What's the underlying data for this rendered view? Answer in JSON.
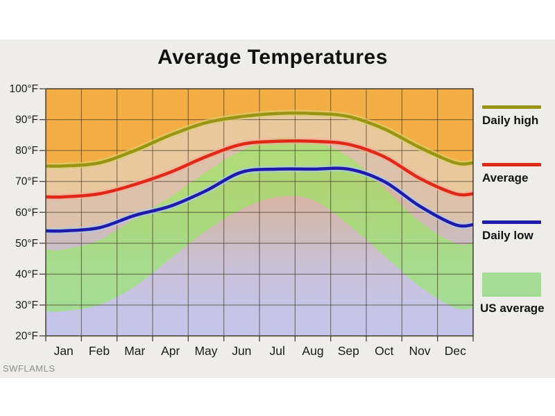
{
  "title": "Average Temperatures",
  "watermark": "SWFLAMLS",
  "y_axis": {
    "tick_labels": [
      "100°F",
      "90°F",
      "80°F",
      "70°F",
      "60°F",
      "50°F",
      "40°F",
      "30°F",
      "20°F"
    ],
    "min": 20,
    "max": 100,
    "step": 10
  },
  "x_axis": {
    "tick_labels": [
      "Jan",
      "Feb",
      "Mar",
      "Apr",
      "May",
      "Jun",
      "Jul",
      "Aug",
      "Sep",
      "Oct",
      "Nov",
      "Dec"
    ]
  },
  "legend": {
    "items": [
      {
        "label": "Daily high",
        "swatch": "line",
        "color": "#9a9414"
      },
      {
        "label": "Average",
        "swatch": "line",
        "color": "#e02818"
      },
      {
        "label": "Daily low",
        "swatch": "line",
        "color": "#201aaa"
      },
      {
        "label": "US average",
        "swatch": "area",
        "color": "#a5dc96"
      }
    ]
  },
  "chart_data": {
    "type": "line",
    "title": "Average Temperatures",
    "categories": [
      "Jan",
      "Feb",
      "Mar",
      "Apr",
      "May",
      "Jun",
      "Jul",
      "Aug",
      "Sep",
      "Oct",
      "Nov",
      "Dec"
    ],
    "series": [
      {
        "name": "Daily high",
        "color": "#9a9414",
        "values": [
          75,
          76,
          80,
          85,
          89,
          91,
          92,
          92,
          91,
          87,
          81,
          76
        ]
      },
      {
        "name": "Average",
        "color": "#e02818",
        "values": [
          65,
          66,
          69,
          73,
          78,
          82,
          83,
          83,
          82,
          78,
          71,
          66
        ]
      },
      {
        "name": "Daily low",
        "color": "#201aaa",
        "values": [
          54,
          55,
          59,
          62,
          67,
          73,
          74,
          74,
          74,
          70,
          62,
          56
        ]
      },
      {
        "name": "US average range",
        "type": "band",
        "color": "#8bf052",
        "high": [
          48,
          51,
          58,
          65,
          73,
          80,
          84,
          83,
          78,
          68,
          57,
          50
        ],
        "low": [
          28,
          30,
          36,
          45,
          54,
          61,
          65,
          64,
          56,
          46,
          36,
          29
        ]
      }
    ],
    "ylim": [
      20,
      100
    ],
    "ylabel": "°F",
    "grid": true,
    "legend_position": "right"
  },
  "colors": {
    "page_bg": "#ffffff",
    "chart_bg": "#efedea",
    "grid": "#453a28",
    "frame": "#3a3020",
    "text": "#1a1a1a",
    "fill_above_high": "#f2ae45",
    "fill_high_avg": "#e9c89e",
    "fill_avg_low": "#dcc2ab",
    "below_low_gradient": [
      "#e2b293",
      "#dab2a0",
      "#cfbab4",
      "#c9c1d8",
      "#c6c4e6",
      "#c5c4ea"
    ],
    "band_green": "#8bf052",
    "band_opacity": 0.55,
    "halo_high": "#d8d270",
    "halo_avg": "#f6ac98",
    "halo_low": "#a8ccf2",
    "watermark_color": "#8e8e8e"
  }
}
